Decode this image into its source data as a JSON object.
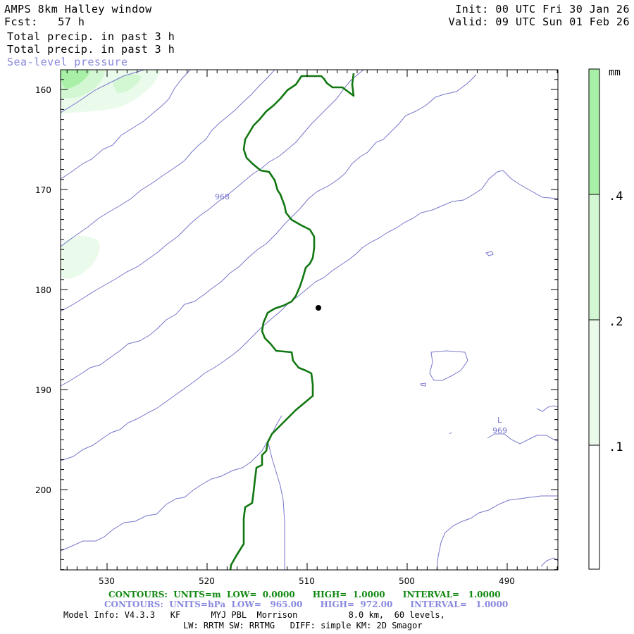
{
  "header": {
    "title": "AMPS 8km Halley window",
    "forecast": "Fcst:   57 h",
    "field1": "Total precip. in past 3 h",
    "field2": "Total precip. in past 3 h",
    "field3": "Sea-level pressure",
    "init": "Init: 00 UTC Fri 30 Jan 26",
    "valid": "Valid: 09 UTC Sun 01 Feb 26"
  },
  "axes": {
    "y_ticks": [
      "160",
      "170",
      "180",
      "190",
      "200"
    ],
    "x_ticks": [
      "530",
      "520",
      "510",
      "500",
      "490"
    ]
  },
  "map_labels": {
    "contour_968": "968",
    "contour_969": "969",
    "low_marker": "L"
  },
  "colorbar": {
    "unit": "mm",
    "levels": [
      ".4",
      ".2",
      ".1"
    ],
    "colors": [
      "#a8f0a8",
      "#d2f7d2",
      "#ebfbeb",
      "#ffffff"
    ]
  },
  "footer": {
    "contours_green": "CONTOURS:  UNITS=m  LOW=  0.0000      HIGH=  1.0000      INTERVAL=   1.0000",
    "contours_blue": "CONTOURS:  UNITS=hPa  LOW=   965.00      HIGH=  972.00      INTERVAL=   1.0000",
    "model_info": "Model Info: V4.3.3   KF      MYJ PBL  Morrison          8.0 km,  60 levels,",
    "model_info2": "LW: RRTM SW: RRTMG   DIFF: simple KM: 2D Smagor"
  },
  "colors": {
    "pressure_contour": "#7777cc",
    "coastline": "#117711",
    "precip_light": "#ebfbeb",
    "precip_mid": "#d2f7d2",
    "precip_high": "#a8f0a8"
  }
}
